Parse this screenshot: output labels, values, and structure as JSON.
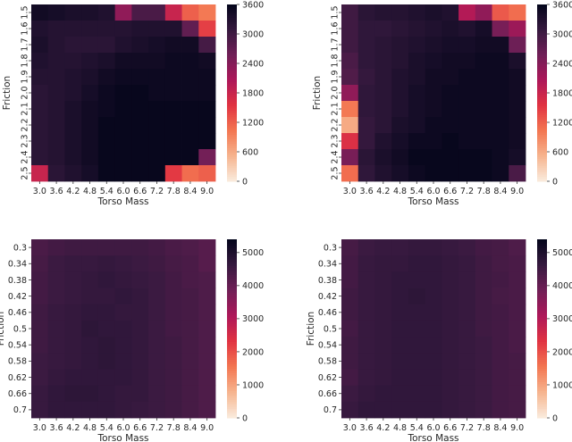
{
  "chart_data": [
    {
      "type": "heatmap",
      "title": "",
      "xlabel": "Torso Mass",
      "ylabel": "Friction",
      "x": [
        "3.0",
        "3.6",
        "4.2",
        "4.8",
        "5.4",
        "6.0",
        "6.6",
        "7.2",
        "7.8",
        "8.4",
        "9.0"
      ],
      "y": [
        "1.5",
        "1.6",
        "1.7",
        "1.8",
        "1.9",
        "2.0",
        "2.1",
        "2.2",
        "2.3",
        "2.4",
        "2.5"
      ],
      "colorbar": {
        "min": 0,
        "max": 3600,
        "ticks": [
          "0",
          "600",
          "1200",
          "1800",
          "2400",
          "3000",
          "3600"
        ]
      },
      "values": [
        [
          3450,
          3400,
          3350,
          3350,
          3300,
          2300,
          2900,
          2900,
          1800,
          1200,
          1000
        ],
        [
          3300,
          3250,
          3250,
          3250,
          3250,
          3250,
          3300,
          3300,
          3300,
          2700,
          1450
        ],
        [
          3350,
          3250,
          3200,
          3200,
          3200,
          3300,
          3350,
          3400,
          3450,
          3450,
          2950
        ],
        [
          3300,
          3250,
          3250,
          3300,
          3350,
          3450,
          3450,
          3450,
          3500,
          3500,
          3450
        ],
        [
          3250,
          3250,
          3300,
          3350,
          3450,
          3500,
          3500,
          3500,
          3500,
          3500,
          3500
        ],
        [
          3200,
          3250,
          3300,
          3400,
          3500,
          3550,
          3550,
          3500,
          3500,
          3500,
          3500
        ],
        [
          3200,
          3250,
          3350,
          3450,
          3500,
          3550,
          3550,
          3550,
          3550,
          3550,
          3550
        ],
        [
          3200,
          3250,
          3350,
          3450,
          3550,
          3550,
          3550,
          3550,
          3550,
          3550,
          3550
        ],
        [
          3200,
          3250,
          3350,
          3450,
          3550,
          3550,
          3550,
          3550,
          3550,
          3550,
          3550
        ],
        [
          3200,
          3250,
          3350,
          3450,
          3550,
          3550,
          3550,
          3550,
          3550,
          3550,
          2550
        ],
        [
          1800,
          3200,
          3300,
          3400,
          3550,
          3550,
          3550,
          3550,
          1500,
          1100,
          1200
        ]
      ]
    },
    {
      "type": "heatmap",
      "title": "",
      "xlabel": "Torso Mass",
      "ylabel": "Friction",
      "x": [
        "3.0",
        "3.6",
        "4.2",
        "4.8",
        "5.4",
        "6.0",
        "6.6",
        "7.2",
        "7.8",
        "8.4",
        "9.0"
      ],
      "y": [
        "1.5",
        "1.6",
        "1.7",
        "1.8",
        "1.9",
        "2.0",
        "2.1",
        "2.2",
        "2.3",
        "2.4",
        "2.5"
      ],
      "colorbar": {
        "min": 0,
        "max": 3600,
        "ticks": [
          "0",
          "600",
          "1200",
          "1800",
          "2400",
          "3000",
          "3600"
        ]
      },
      "values": [
        [
          3000,
          3200,
          3250,
          3250,
          3300,
          3350,
          3300,
          2000,
          2300,
          1250,
          1100
        ],
        [
          3000,
          3150,
          3150,
          3200,
          3250,
          3300,
          3350,
          3300,
          3400,
          2500,
          2200
        ],
        [
          3000,
          3150,
          3200,
          3250,
          3300,
          3350,
          3400,
          3400,
          3450,
          3450,
          2600
        ],
        [
          2900,
          3150,
          3200,
          3250,
          3350,
          3400,
          3450,
          3450,
          3500,
          3500,
          3350
        ],
        [
          2850,
          3100,
          3200,
          3300,
          3350,
          3450,
          3450,
          3500,
          3500,
          3500,
          3450
        ],
        [
          2300,
          3150,
          3200,
          3300,
          3400,
          3450,
          3500,
          3500,
          3500,
          3500,
          3450
        ],
        [
          1000,
          3150,
          3200,
          3300,
          3400,
          3450,
          3500,
          3500,
          3500,
          3500,
          3450
        ],
        [
          600,
          3100,
          3200,
          3350,
          3400,
          3500,
          3500,
          3500,
          3500,
          3500,
          3450
        ],
        [
          1600,
          3100,
          3300,
          3400,
          3500,
          3500,
          3550,
          3500,
          3500,
          3500,
          3450
        ],
        [
          2500,
          3200,
          3350,
          3450,
          3550,
          3550,
          3550,
          3550,
          3550,
          3500,
          3400
        ],
        [
          1100,
          3150,
          3300,
          3400,
          3500,
          3550,
          3550,
          3550,
          3550,
          3500,
          2900
        ]
      ]
    },
    {
      "type": "heatmap",
      "title": "",
      "xlabel": "Torso Mass",
      "ylabel": "Friction",
      "x": [
        "3.0",
        "3.6",
        "4.2",
        "4.8",
        "5.4",
        "6.0",
        "6.6",
        "7.2",
        "7.8",
        "8.4",
        "9.0"
      ],
      "y": [
        "0.3",
        "0.34",
        "0.38",
        "0.42",
        "0.46",
        "0.5",
        "0.54",
        "0.58",
        "0.62",
        "0.66",
        "0.7"
      ],
      "colorbar": {
        "min": 0,
        "max": 5400,
        "ticks": [
          "0",
          "1000",
          "2000",
          "3000",
          "4000",
          "5000"
        ]
      },
      "values": [
        [
          4350,
          4450,
          4500,
          4500,
          4500,
          4500,
          4500,
          4450,
          4350,
          4300,
          4200
        ],
        [
          4400,
          4550,
          4600,
          4600,
          4650,
          4600,
          4550,
          4500,
          4400,
          4350,
          4200
        ],
        [
          4450,
          4550,
          4600,
          4650,
          4700,
          4650,
          4600,
          4550,
          4450,
          4350,
          4300
        ],
        [
          4450,
          4550,
          4600,
          4650,
          4650,
          4700,
          4650,
          4550,
          4450,
          4400,
          4300
        ],
        [
          4500,
          4600,
          4650,
          4700,
          4700,
          4650,
          4650,
          4550,
          4450,
          4400,
          4300
        ],
        [
          4500,
          4600,
          4650,
          4750,
          4700,
          4700,
          4650,
          4550,
          4450,
          4400,
          4300
        ],
        [
          4500,
          4600,
          4650,
          4700,
          4750,
          4700,
          4650,
          4550,
          4500,
          4400,
          4300
        ],
        [
          4550,
          4600,
          4650,
          4700,
          4750,
          4700,
          4650,
          4550,
          4500,
          4400,
          4300
        ],
        [
          4550,
          4650,
          4700,
          4700,
          4700,
          4700,
          4650,
          4550,
          4500,
          4400,
          4300
        ],
        [
          4600,
          4700,
          4750,
          4750,
          4700,
          4650,
          4650,
          4550,
          4500,
          4400,
          4300
        ],
        [
          4600,
          4700,
          4700,
          4700,
          4700,
          4650,
          4600,
          4550,
          4500,
          4400,
          4300
        ]
      ]
    },
    {
      "type": "heatmap",
      "title": "",
      "xlabel": "Torso Mass",
      "ylabel": "Friction",
      "x": [
        "3.0",
        "3.6",
        "4.2",
        "4.8",
        "5.4",
        "6.0",
        "6.6",
        "7.2",
        "7.8",
        "8.4",
        "9.0"
      ],
      "y": [
        "0.3",
        "0.34",
        "0.38",
        "0.42",
        "0.46",
        "0.5",
        "0.54",
        "0.58",
        "0.62",
        "0.66",
        "0.7"
      ],
      "colorbar": {
        "min": 0,
        "max": 5400,
        "ticks": [
          "0",
          "1000",
          "2000",
          "3000",
          "4000",
          "5000"
        ]
      },
      "values": [
        [
          4400,
          4550,
          4600,
          4600,
          4650,
          4650,
          4600,
          4550,
          4450,
          4400,
          4300
        ],
        [
          4450,
          4600,
          4650,
          4650,
          4700,
          4700,
          4650,
          4600,
          4500,
          4400,
          4350
        ],
        [
          4450,
          4600,
          4650,
          4700,
          4700,
          4700,
          4650,
          4600,
          4500,
          4450,
          4350
        ],
        [
          4500,
          4600,
          4650,
          4700,
          4750,
          4700,
          4650,
          4600,
          4500,
          4400,
          4350
        ],
        [
          4500,
          4600,
          4650,
          4700,
          4700,
          4700,
          4650,
          4600,
          4500,
          4450,
          4350
        ],
        [
          4450,
          4600,
          4650,
          4700,
          4700,
          4700,
          4650,
          4600,
          4500,
          4450,
          4350
        ],
        [
          4500,
          4600,
          4650,
          4700,
          4700,
          4700,
          4650,
          4600,
          4550,
          4450,
          4350
        ],
        [
          4500,
          4600,
          4650,
          4700,
          4700,
          4700,
          4650,
          4600,
          4550,
          4450,
          4400
        ],
        [
          4450,
          4600,
          4650,
          4700,
          4700,
          4700,
          4650,
          4600,
          4550,
          4450,
          4400
        ],
        [
          4550,
          4650,
          4700,
          4700,
          4700,
          4700,
          4650,
          4600,
          4550,
          4450,
          4400
        ],
        [
          4600,
          4700,
          4700,
          4700,
          4700,
          4700,
          4650,
          4600,
          4550,
          4450,
          4400
        ]
      ]
    }
  ],
  "colormap": [
    "#faebdd",
    "#f6b48e",
    "#f37651",
    "#e13342",
    "#ad1759",
    "#701f57",
    "#35193e",
    "#03051a"
  ]
}
